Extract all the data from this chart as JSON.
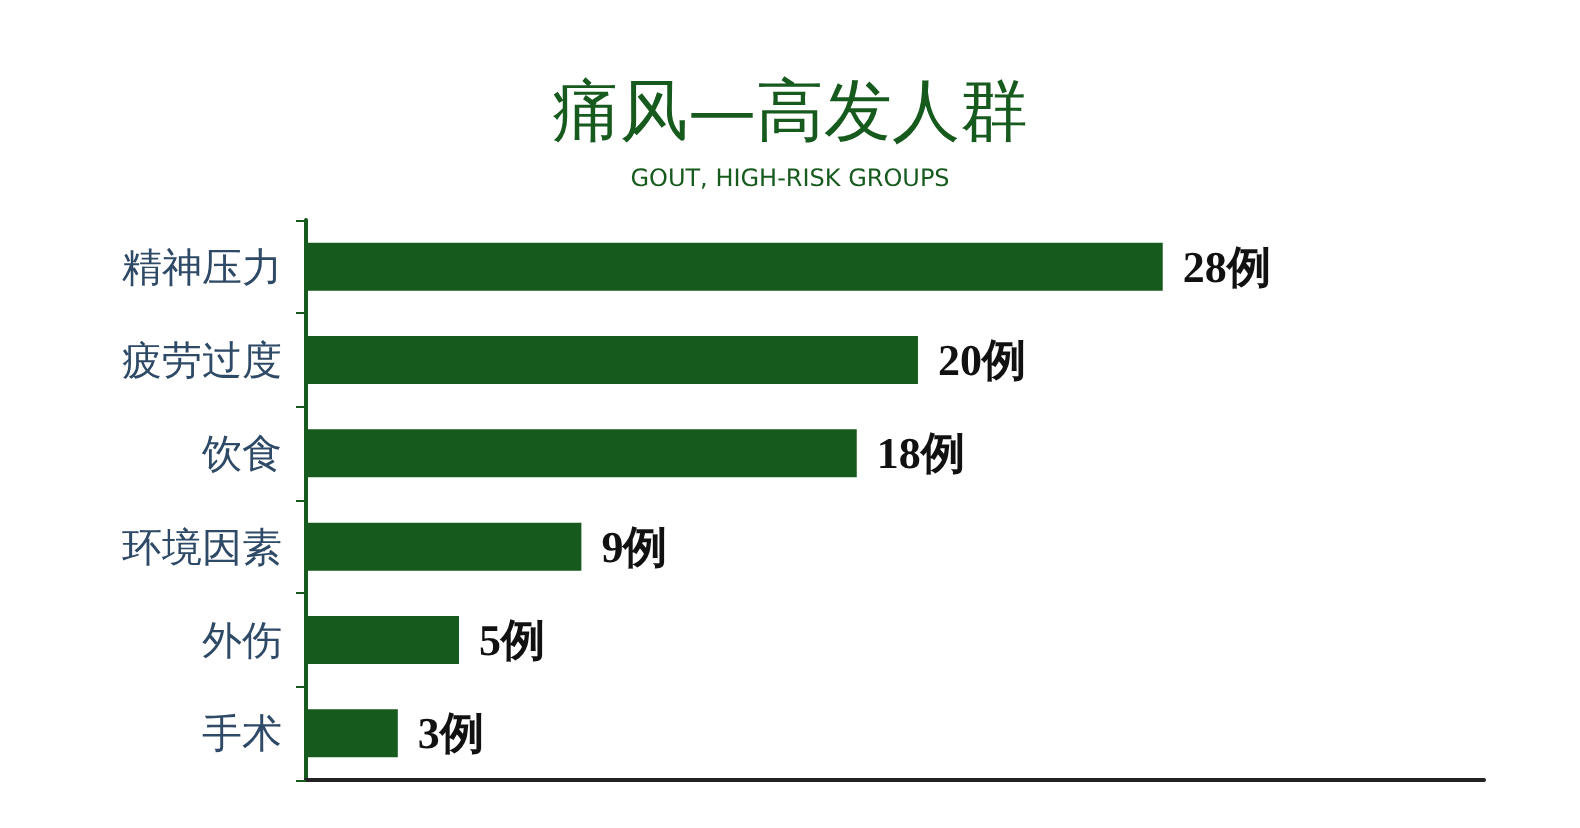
{
  "chart_data": {
    "type": "bar",
    "orientation": "horizontal",
    "title": "痛风—高发人群",
    "subtitle": "GOUT, HIGH-RISK GROUPS",
    "categories": [
      "精神压力",
      "疲劳过度",
      "饮食",
      "环境因素",
      "外伤",
      "手术"
    ],
    "values": [
      28,
      20,
      18,
      9,
      5,
      3
    ],
    "value_labels": [
      "28例",
      "20例",
      "18例",
      "9例",
      "5例",
      "3例"
    ],
    "color": "#165a1e",
    "xlim": [
      0,
      38.5
    ]
  }
}
